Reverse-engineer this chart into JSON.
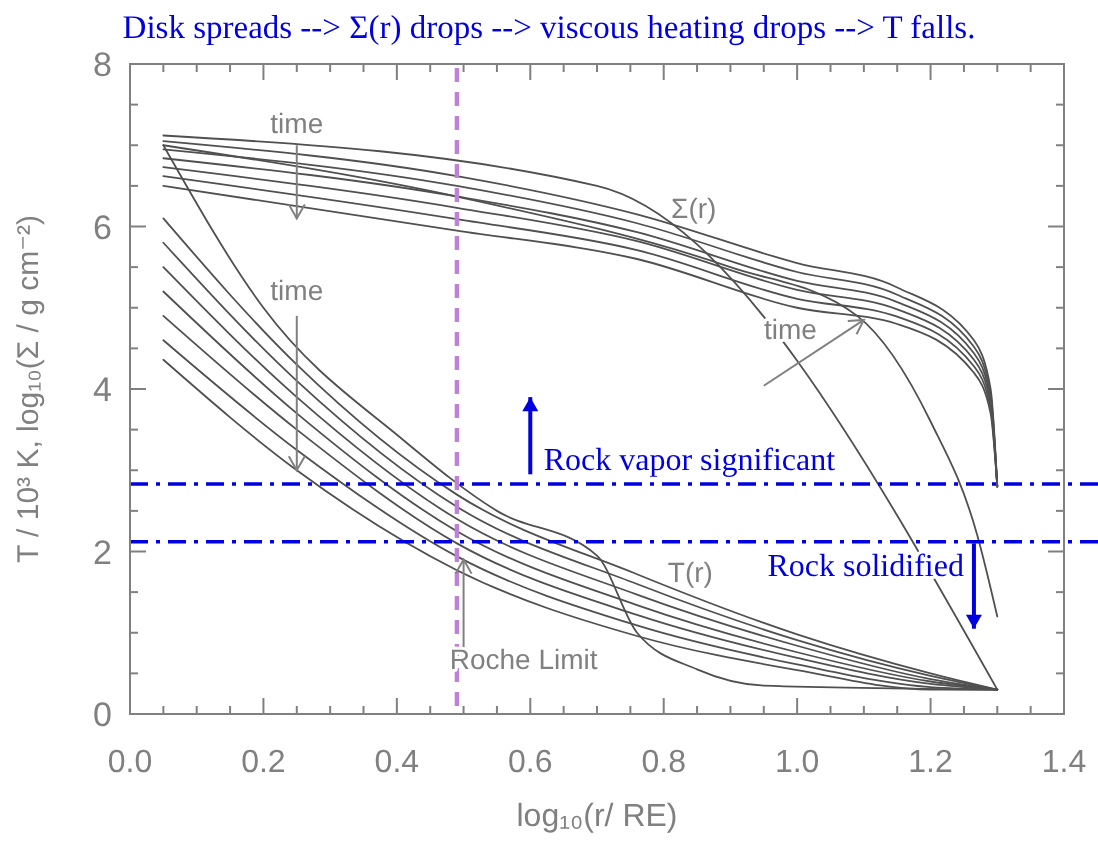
{
  "chart_data": {
    "type": "line",
    "title": "Disk spreads --> Σ(r) drops --> viscous heating drops -->  T falls.",
    "xlabel": "log₁₀(r/ RE)",
    "ylabel": "T / 10³ K, log₁₀(Σ / g cm⁻²)",
    "xlim": [
      0,
      1.4
    ],
    "ylim": [
      0,
      8
    ],
    "xticks": [
      {
        "value": 0,
        "label": "0.0"
      },
      {
        "value": 0.05,
        "label": null
      },
      {
        "value": 0.1,
        "label": null
      },
      {
        "value": 0.15,
        "label": null
      },
      {
        "value": 0.2,
        "label": "0.2"
      },
      {
        "value": 0.25,
        "label": null
      },
      {
        "value": 0.3,
        "label": null
      },
      {
        "value": 0.35,
        "label": null
      },
      {
        "value": 0.4,
        "label": "0.4"
      },
      {
        "value": 0.45,
        "label": null
      },
      {
        "value": 0.5,
        "label": null
      },
      {
        "value": 0.55,
        "label": null
      },
      {
        "value": 0.6,
        "label": "0.6"
      },
      {
        "value": 0.65,
        "label": null
      },
      {
        "value": 0.7,
        "label": null
      },
      {
        "value": 0.75,
        "label": null
      },
      {
        "value": 0.8,
        "label": "0.8"
      },
      {
        "value": 0.85,
        "label": null
      },
      {
        "value": 0.9,
        "label": null
      },
      {
        "value": 0.95,
        "label": null
      },
      {
        "value": 1.0,
        "label": "1.0"
      },
      {
        "value": 1.05,
        "label": null
      },
      {
        "value": 1.1,
        "label": null
      },
      {
        "value": 1.15,
        "label": null
      },
      {
        "value": 1.2,
        "label": "1.2"
      },
      {
        "value": 1.25,
        "label": null
      },
      {
        "value": 1.3,
        "label": null
      },
      {
        "value": 1.35,
        "label": null
      },
      {
        "value": 1.4,
        "label": "1.4"
      }
    ],
    "yticks": [
      0,
      {
        "value": 0.5,
        "label": null
      },
      {
        "value": 1,
        "label": null
      },
      {
        "value": 1.5,
        "label": null
      },
      2,
      {
        "value": 2.5,
        "label": null
      },
      {
        "value": 3,
        "label": null
      },
      {
        "value": 3.5,
        "label": null
      },
      4,
      {
        "value": 4.5,
        "label": null
      },
      {
        "value": 5,
        "label": null
      },
      {
        "value": 5.5,
        "label": null
      },
      6,
      {
        "value": 6.5,
        "label": null
      },
      {
        "value": 7,
        "label": null
      },
      {
        "value": 7.5,
        "label": null
      },
      8
    ],
    "grid": false,
    "marker": "none",
    "line_style": "solid",
    "series": [
      {
        "color": "#505050",
        "x": [
          0.05,
          0.7,
          1.3
        ],
        "values": [
          7.12,
          6.5,
          0.3
        ]
      },
      {
        "color": "#505050",
        "x": [
          0.05,
          0.5,
          0.9,
          1.09,
          1.2,
          1.27,
          1.3
        ],
        "values": [
          7.0,
          6.35,
          5.5,
          4.9,
          3.6,
          2.2,
          1.2
        ]
      },
      {
        "color": "#505050",
        "x": [
          0.05,
          0.49,
          0.76,
          1.0,
          1.15,
          1.265,
          1.29,
          1.3
        ],
        "values": [
          7.05,
          6.62,
          6.15,
          5.55,
          5.25,
          4.6,
          4.0,
          2.8
        ]
      },
      {
        "color": "#505050",
        "x": [
          0.05,
          0.49,
          0.76,
          1.0,
          1.15,
          1.265,
          1.29,
          1.3
        ],
        "values": [
          6.95,
          6.5,
          6.04,
          5.44,
          5.16,
          4.52,
          3.94,
          2.8
        ]
      },
      {
        "color": "#505050",
        "x": [
          0.05,
          0.49,
          0.76,
          1.0,
          1.15,
          1.265,
          1.29,
          1.3
        ],
        "values": [
          6.84,
          6.37,
          5.93,
          5.33,
          5.07,
          4.44,
          3.88,
          2.8
        ]
      },
      {
        "color": "#505050",
        "x": [
          0.05,
          0.49,
          0.76,
          1.0,
          1.15,
          1.265,
          1.29,
          1.3
        ],
        "values": [
          6.73,
          6.23,
          5.82,
          5.22,
          4.98,
          4.36,
          3.82,
          2.8
        ]
      },
      {
        "color": "#505050",
        "x": [
          0.05,
          0.49,
          0.76,
          1.0,
          1.15,
          1.265,
          1.29,
          1.3
        ],
        "values": [
          6.62,
          6.09,
          5.71,
          5.11,
          4.89,
          4.28,
          3.76,
          2.8
        ]
      },
      {
        "color": "#505050",
        "x": [
          0.05,
          0.49,
          0.76,
          1.0,
          1.15,
          1.265,
          1.29,
          1.3
        ],
        "values": [
          6.5,
          5.95,
          5.6,
          5.0,
          4.8,
          4.2,
          3.7,
          2.8
        ]
      },
      {
        "color": "#505050",
        "x": [
          0.05,
          0.2,
          0.41,
          0.55,
          0.7,
          0.76,
          0.85,
          0.95,
          1.3
        ],
        "values": [
          7.0,
          5.0,
          3.37,
          2.5,
          1.95,
          1.0,
          0.55,
          0.35,
          0.3
        ]
      },
      {
        "color": "#505050",
        "x": [
          0.05,
          0.25,
          0.49,
          0.76,
          1.0,
          1.2,
          1.3
        ],
        "values": [
          6.1,
          4.3,
          2.7,
          1.72,
          0.98,
          0.5,
          0.3
        ]
      },
      {
        "color": "#505050",
        "x": [
          0.05,
          0.25,
          0.49,
          0.76,
          1.0,
          1.2,
          1.3
        ],
        "values": [
          5.8,
          4.1,
          2.55,
          1.6,
          0.91,
          0.47,
          0.3
        ]
      },
      {
        "color": "#505050",
        "x": [
          0.05,
          0.25,
          0.49,
          0.76,
          1.0,
          1.2,
          1.3
        ],
        "values": [
          5.5,
          3.9,
          2.4,
          1.47,
          0.84,
          0.43,
          0.3
        ]
      },
      {
        "color": "#505050",
        "x": [
          0.05,
          0.25,
          0.49,
          0.76,
          1.0,
          1.2,
          1.3
        ],
        "values": [
          5.2,
          3.7,
          2.25,
          1.34,
          0.76,
          0.4,
          0.3
        ]
      },
      {
        "color": "#505050",
        "x": [
          0.05,
          0.25,
          0.49,
          0.76,
          1.0,
          1.2,
          1.3
        ],
        "values": [
          4.9,
          3.5,
          2.1,
          1.22,
          0.69,
          0.37,
          0.3
        ]
      },
      {
        "color": "#505050",
        "x": [
          0.05,
          0.25,
          0.49,
          0.76,
          1.0,
          1.2,
          1.3
        ],
        "values": [
          4.6,
          3.25,
          1.94,
          1.09,
          0.61,
          0.33,
          0.3
        ]
      },
      {
        "color": "#505050",
        "x": [
          0.05,
          0.25,
          0.49,
          0.76,
          1.0,
          1.2,
          1.3
        ],
        "values": [
          4.36,
          3.0,
          1.77,
          0.96,
          0.54,
          0.3,
          0.3
        ]
      }
    ],
    "ref_lines": [
      {
        "axis": "x",
        "value": 0.49,
        "color": "#c080d8",
        "line_style": "dashed"
      },
      {
        "axis": "y",
        "value": 2.83,
        "color": "#0000e0",
        "line_style": "dashdot"
      },
      {
        "axis": "y",
        "value": 2.12,
        "color": "#0000e0",
        "line_style": "dashdot"
      }
    ],
    "annotations": [
      "time",
      {
        "text": "time",
        "x": 0.25,
        "y": 3.0
      },
      "time",
      "Σ(r)",
      "T(r)",
      {
        "text": "Roche Limit",
        "x": 0.5,
        "y": 1.9
      },
      "Rock vapor significant",
      "Rock solidified"
    ]
  }
}
